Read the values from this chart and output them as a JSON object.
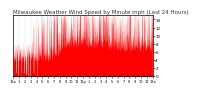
{
  "title": "Milwaukee Weather Wind Speed by Minute mph (Last 24 Hours)",
  "title_fontsize": 4.0,
  "ylim": [
    0,
    15
  ],
  "xlim": [
    0,
    1440
  ],
  "bar_color": "#ff0000",
  "background_color": "#ffffff",
  "plot_bg_color": "#ffffff",
  "grid_color": "#bbbbbb",
  "num_points": 1440,
  "yticks": [
    0,
    2,
    4,
    6,
    8,
    10,
    12,
    14
  ],
  "ytick_labels": [
    "0",
    "2",
    "4",
    "6",
    "8",
    "10",
    "12",
    "14"
  ],
  "xtick_positions": [
    0,
    60,
    120,
    180,
    240,
    300,
    360,
    420,
    480,
    540,
    600,
    660,
    720,
    780,
    840,
    900,
    960,
    1020,
    1080,
    1140,
    1200,
    1260,
    1320,
    1380,
    1440
  ],
  "xtick_labels": [
    "12a",
    "1",
    "2",
    "3",
    "4",
    "5",
    "6",
    "7",
    "8",
    "9",
    "10",
    "11",
    "12p",
    "1",
    "2",
    "3",
    "4",
    "5",
    "6",
    "7",
    "8",
    "9",
    "10",
    "11",
    "12a"
  ],
  "seed": 7
}
